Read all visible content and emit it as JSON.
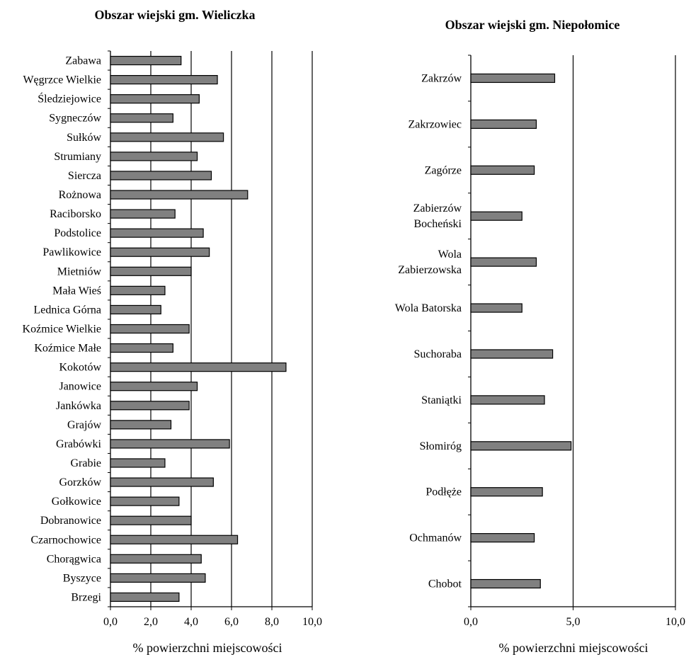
{
  "chart_data": [
    {
      "type": "bar",
      "orientation": "horizontal",
      "title": "Obszar wiejski gm. Wieliczka",
      "xlabel": "% powierzchni miejscowości",
      "ylabel": "",
      "xlim": [
        0,
        10
      ],
      "xticks": [
        "0,0",
        "2,0",
        "4,0",
        "6,0",
        "8,0",
        "10,0"
      ],
      "grid": "vertical",
      "bar_color": "#808080",
      "categories": [
        "Zabawa",
        "Węgrzce Wielkie",
        "Śledziejowice",
        "Sygneczów",
        "Sułków",
        "Strumiany",
        "Siercza",
        "Rożnowa",
        "Raciborsko",
        "Podstolice",
        "Pawlikowice",
        "Mietniów",
        "Mała Wieś",
        "Lednica Górna",
        "Koźmice Wielkie",
        "Koźmice Małe",
        "Kokotów",
        "Janowice",
        "Jankówka",
        "Grajów",
        "Grabówki",
        "Grabie",
        "Gorzków",
        "Gołkowice",
        "Dobranowice",
        "Czarnochowice",
        "Chorągwica",
        "Byszyce",
        "Brzegi"
      ],
      "values": [
        3.5,
        5.3,
        4.4,
        3.1,
        5.6,
        4.3,
        5.0,
        6.8,
        3.2,
        4.6,
        4.9,
        4.0,
        2.7,
        2.5,
        3.9,
        3.1,
        8.7,
        4.3,
        3.9,
        3.0,
        5.9,
        2.7,
        5.1,
        3.4,
        4.0,
        6.3,
        4.5,
        4.7,
        3.4
      ]
    },
    {
      "type": "bar",
      "orientation": "horizontal",
      "title": "Obszar wiejski gm. Niepołomice",
      "xlabel": "% powierzchni miejscowości",
      "ylabel": "",
      "xlim": [
        0,
        10
      ],
      "xticks": [
        "0,0",
        "5,0",
        "10,0"
      ],
      "grid": "vertical",
      "bar_color": "#808080",
      "categories": [
        "Zakrzów",
        "Zakrzowiec",
        "Zagórze",
        "Zabierzów\nBocheński",
        "Wola\nZabierzowska",
        "Wola Batorska",
        "Suchoraba",
        "Staniątki",
        "Słomiróg",
        "Podłęże",
        "Ochmanów",
        "Chobot"
      ],
      "values": [
        4.1,
        3.2,
        3.1,
        2.5,
        3.2,
        2.5,
        4.0,
        3.6,
        4.9,
        3.5,
        3.1,
        3.4
      ]
    }
  ]
}
